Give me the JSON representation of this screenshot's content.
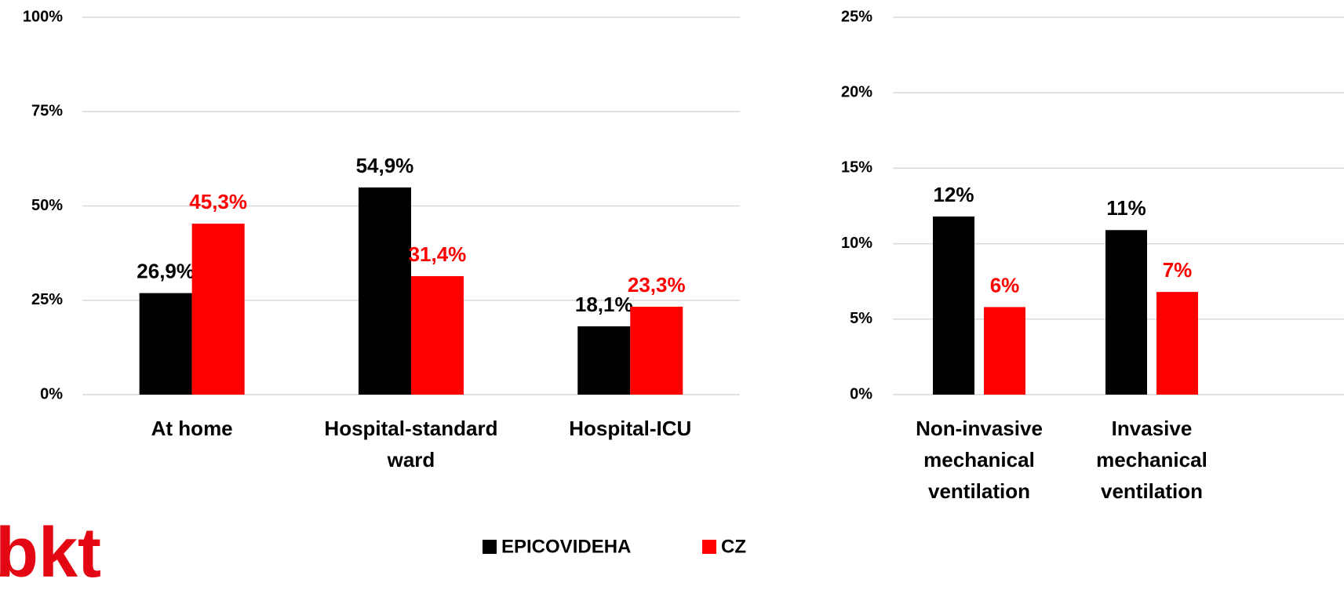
{
  "chart_data": [
    {
      "type": "bar",
      "categories": [
        "At home",
        "Hospital-standard ward",
        "Hospital-ICU"
      ],
      "series": [
        {
          "name": "EPICOVIDEHA",
          "color": "#000000",
          "values": [
            26.9,
            54.9,
            18.1
          ],
          "value_labels": [
            "26,9%",
            "54,9%",
            "18,1%"
          ]
        },
        {
          "name": "CZ",
          "color": "#ff0000",
          "values": [
            45.3,
            31.4,
            23.3
          ],
          "value_labels": [
            "45,3%",
            "31,4%",
            "23,3%"
          ]
        }
      ],
      "ylim": [
        0,
        100
      ],
      "yticks": [
        {
          "value": 0,
          "label": "0%"
        },
        {
          "value": 25,
          "label": "25%"
        },
        {
          "value": 50,
          "label": "50%"
        },
        {
          "value": 75,
          "label": "75%"
        },
        {
          "value": 100,
          "label": "100%"
        }
      ],
      "grid": true
    },
    {
      "type": "bar",
      "categories": [
        "Non-invasive mechanical ventilation",
        "Invasive mechanical ventilation"
      ],
      "series": [
        {
          "name": "EPICOVIDEHA",
          "color": "#000000",
          "values": [
            11.8,
            10.9
          ],
          "value_labels": [
            "12%",
            "11%"
          ]
        },
        {
          "name": "CZ",
          "color": "#ff0000",
          "values": [
            5.8,
            6.8
          ],
          "value_labels": [
            "6%",
            "7%"
          ]
        }
      ],
      "ylim": [
        0,
        25
      ],
      "yticks": [
        {
          "value": 0,
          "label": "0%"
        },
        {
          "value": 5,
          "label": "5%"
        },
        {
          "value": 10,
          "label": "10%"
        },
        {
          "value": 15,
          "label": "15%"
        },
        {
          "value": 20,
          "label": "20%"
        },
        {
          "value": 25,
          "label": "25%"
        }
      ],
      "grid": true
    }
  ],
  "logo": "bkt"
}
